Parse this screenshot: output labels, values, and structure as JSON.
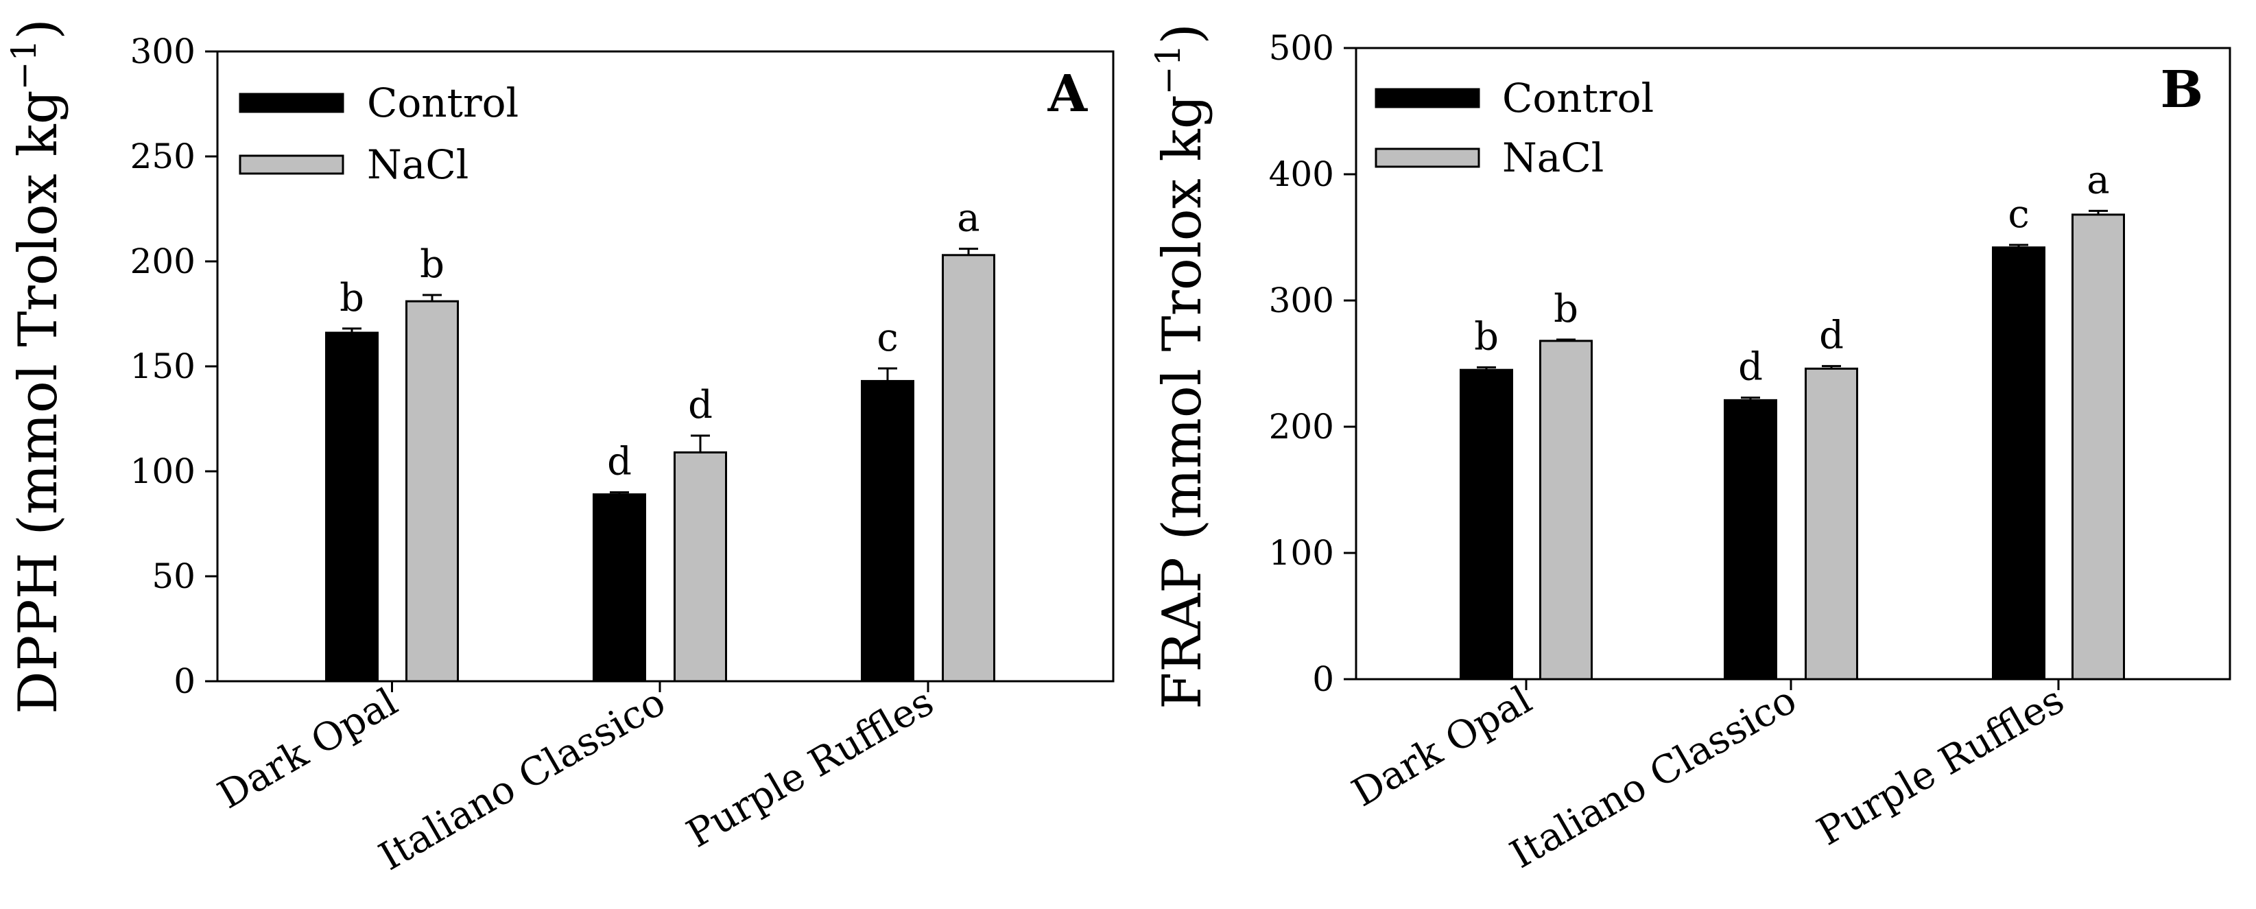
{
  "chart_data": [
    {
      "type": "bar",
      "panel": "A",
      "ylabel_main": "DPPH (mmol Trolox kg",
      "ylabel_sup": "−1",
      "ylabel_close": ")",
      "ylim": [
        0,
        300
      ],
      "yticks": [
        "0",
        "50",
        "100",
        "150",
        "200",
        "250",
        "300"
      ],
      "ytick_values": [
        0,
        50,
        100,
        150,
        200,
        250,
        300
      ],
      "categories": [
        "Dark Opal",
        "Italiano Classico",
        "Purple Ruffles"
      ],
      "series": [
        {
          "name": "Control",
          "color": "#000000",
          "values": [
            166,
            89,
            143
          ],
          "errors": [
            2,
            1,
            6
          ],
          "letters": [
            "b",
            "d",
            "c"
          ]
        },
        {
          "name": "NaCl",
          "color": "#bfbfbf",
          "values": [
            181,
            109,
            203
          ],
          "errors": [
            3,
            8,
            3
          ],
          "letters": [
            "b",
            "d",
            "a"
          ]
        }
      ],
      "legend_position": "top-left"
    },
    {
      "type": "bar",
      "panel": "B",
      "ylabel_main": "FRAP (mmol Trolox kg",
      "ylabel_sup": "−1",
      "ylabel_close": ")",
      "ylim": [
        0,
        500
      ],
      "yticks": [
        "0",
        "100",
        "200",
        "300",
        "400",
        "500"
      ],
      "ytick_values": [
        0,
        100,
        200,
        300,
        400,
        500
      ],
      "categories": [
        "Dark Opal",
        "Italiano Classico",
        "Purple Ruffles"
      ],
      "series": [
        {
          "name": "Control",
          "color": "#000000",
          "values": [
            245,
            221,
            342
          ],
          "errors": [
            2,
            2,
            2
          ],
          "letters": [
            "b",
            "d",
            "c"
          ]
        },
        {
          "name": "NaCl",
          "color": "#bfbfbf",
          "values": [
            268,
            246,
            368
          ],
          "errors": [
            1,
            2,
            3
          ],
          "letters": [
            "b",
            "d",
            "a"
          ]
        }
      ],
      "legend_position": "top-left"
    }
  ]
}
